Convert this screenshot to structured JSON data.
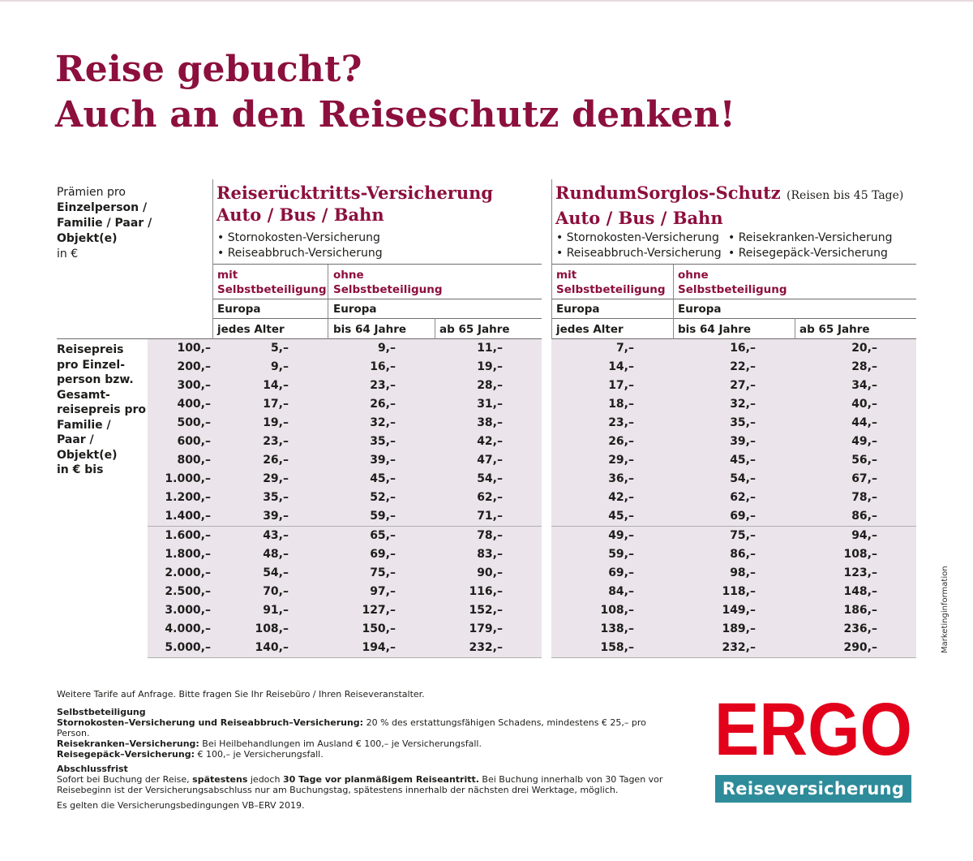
{
  "headline": [
    "Reise gebucht?",
    "Auch an den Reiseschutz denken!"
  ],
  "intro": {
    "line1": "Prämien pro",
    "line2": "Einzelperson /",
    "line3": "Familie / Paar /",
    "line4": "Objekt(e)",
    "line5": "in €"
  },
  "left_section": {
    "title1": "Reiserücktritts-Versicherung",
    "title2": "Auto / Bus / Bahn",
    "bullets": [
      "• Stornokosten-Versicherung",
      "• Reiseabbruch-Versicherung"
    ],
    "col1": {
      "l1": "mit",
      "l2": "Selbstbeteiligung"
    },
    "col2": {
      "l1": "ohne",
      "l2": "Selbstbeteiligung"
    },
    "region1": "Europa",
    "region2": "Europa",
    "age1": "jedes Alter",
    "age2": "bis 64 Jahre",
    "age3": "ab 65 Jahre"
  },
  "right_section": {
    "title1": "RundumSorglos-Schutz",
    "title_note": "(Reisen bis 45 Tage)",
    "title2": "Auto / Bus / Bahn",
    "bullets_a": [
      "• Stornokosten-Versicherung",
      "• Reiseabbruch-Versicherung"
    ],
    "bullets_b": [
      "• Reisekranken-Versicherung",
      "• Reisegepäck-Versicherung"
    ],
    "col1": {
      "l1": "mit",
      "l2": "Selbstbeteiligung"
    },
    "col2": {
      "l1": "ohne",
      "l2": "Selbstbeteiligung"
    },
    "region1": "Europa",
    "region2": "Europa",
    "age1": "jedes Alter",
    "age2": "bis 64 Jahre",
    "age3": "ab 65 Jahre"
  },
  "row_label": [
    "Reisepreis",
    "pro Einzel-",
    "person bzw.",
    "Gesamt-",
    "reisepreis pro",
    "Familie /",
    "Paar /",
    "Objekt(e)",
    "in € bis"
  ],
  "rows": [
    {
      "price": "100,–",
      "left": [
        "5,–",
        "9,–",
        "11,–"
      ],
      "right": [
        "7,–",
        "16,–",
        "20,–"
      ]
    },
    {
      "price": "200,–",
      "left": [
        "9,–",
        "16,–",
        "19,–"
      ],
      "right": [
        "14,–",
        "22,–",
        "28,–"
      ]
    },
    {
      "price": "300,–",
      "left": [
        "14,–",
        "23,–",
        "28,–"
      ],
      "right": [
        "17,–",
        "27,–",
        "34,–"
      ]
    },
    {
      "price": "400,–",
      "left": [
        "17,–",
        "26,–",
        "31,–"
      ],
      "right": [
        "18,–",
        "32,–",
        "40,–"
      ]
    },
    {
      "price": "500,–",
      "left": [
        "19,–",
        "32,–",
        "38,–"
      ],
      "right": [
        "23,–",
        "35,–",
        "44,–"
      ]
    },
    {
      "price": "600,–",
      "left": [
        "23,–",
        "35,–",
        "42,–"
      ],
      "right": [
        "26,–",
        "39,–",
        "49,–"
      ]
    },
    {
      "price": "800,–",
      "left": [
        "26,–",
        "39,–",
        "47,–"
      ],
      "right": [
        "29,–",
        "45,–",
        "56,–"
      ]
    },
    {
      "price": "1.000,–",
      "left": [
        "29,–",
        "45,–",
        "54,–"
      ],
      "right": [
        "36,–",
        "54,–",
        "67,–"
      ]
    },
    {
      "price": "1.200,–",
      "left": [
        "35,–",
        "52,–",
        "62,–"
      ],
      "right": [
        "42,–",
        "62,–",
        "78,–"
      ]
    },
    {
      "price": "1.400,–",
      "left": [
        "39,–",
        "59,–",
        "71,–"
      ],
      "right": [
        "45,–",
        "69,–",
        "86,–"
      ]
    },
    {
      "price": "1.600,–",
      "left": [
        "43,–",
        "65,–",
        "78,–"
      ],
      "right": [
        "49,–",
        "75,–",
        "94,–"
      ]
    },
    {
      "price": "1.800,–",
      "left": [
        "48,–",
        "69,–",
        "83,–"
      ],
      "right": [
        "59,–",
        "86,–",
        "108,–"
      ]
    },
    {
      "price": "2.000,–",
      "left": [
        "54,–",
        "75,–",
        "90,–"
      ],
      "right": [
        "69,–",
        "98,–",
        "123,–"
      ]
    },
    {
      "price": "2.500,–",
      "left": [
        "70,–",
        "97,–",
        "116,–"
      ],
      "right": [
        "84,–",
        "118,–",
        "148,–"
      ]
    },
    {
      "price": "3.000,–",
      "left": [
        "91,–",
        "127,–",
        "152,–"
      ],
      "right": [
        "108,–",
        "149,–",
        "186,–"
      ]
    },
    {
      "price": "4.000,–",
      "left": [
        "108,–",
        "150,–",
        "179,–"
      ],
      "right": [
        "138,–",
        "189,–",
        "236,–"
      ]
    },
    {
      "price": "5.000,–",
      "left": [
        "140,–",
        "194,–",
        "232,–"
      ],
      "right": [
        "158,–",
        "232,–",
        "290,–"
      ]
    }
  ],
  "footer": {
    "line1": "Weitere Tarife auf Anfrage. Bitte fragen Sie Ihr Reisebüro / Ihren Reiseveranstalter.",
    "sb_head": "Selbstbeteiligung",
    "sb1_b": "Stornokosten–Versicherung und Reiseabbruch–Versicherung:",
    "sb1_t": " 20 % des erstattungsfähigen Schadens, mindestens € 25,– pro Person.",
    "sb2_b": "Reisekranken–Versicherung:",
    "sb2_t": " Bei Heilbehandlungen im Ausland € 100,– je Versicherungsfall.",
    "sb3_b": "Reisegepäck–Versicherung:",
    "sb3_t": " € 100,– je Versicherungsfall.",
    "af_head": "Abschlussfrist",
    "af_t1": "Sofort bei Buchung der Reise, ",
    "af_b1": "spätestens",
    "af_t2": " jedoch ",
    "af_b2": "30 Tage vor planmäßigem Reiseantritt.",
    "af_t3": " Bei Buchung innerhalb von 30 Tagen vor",
    "af_line2": "Reisebeginn ist der Versicherungsabschluss nur am Buchungstag, spätestens innerhalb der nächsten drei Werktage, möglich.",
    "last": "Es gelten die Versicherungsbedingungen VB–ERV 2019."
  },
  "logo": {
    "brand": "ERGO",
    "sub": "Reiseversicherung",
    "brand_color": "#e2001a",
    "bar_color": "#2e8b9a"
  },
  "side_note": "Marketinginformation",
  "colors": {
    "accent": "#8c0f3d",
    "stripe": "#ebe4ea"
  }
}
